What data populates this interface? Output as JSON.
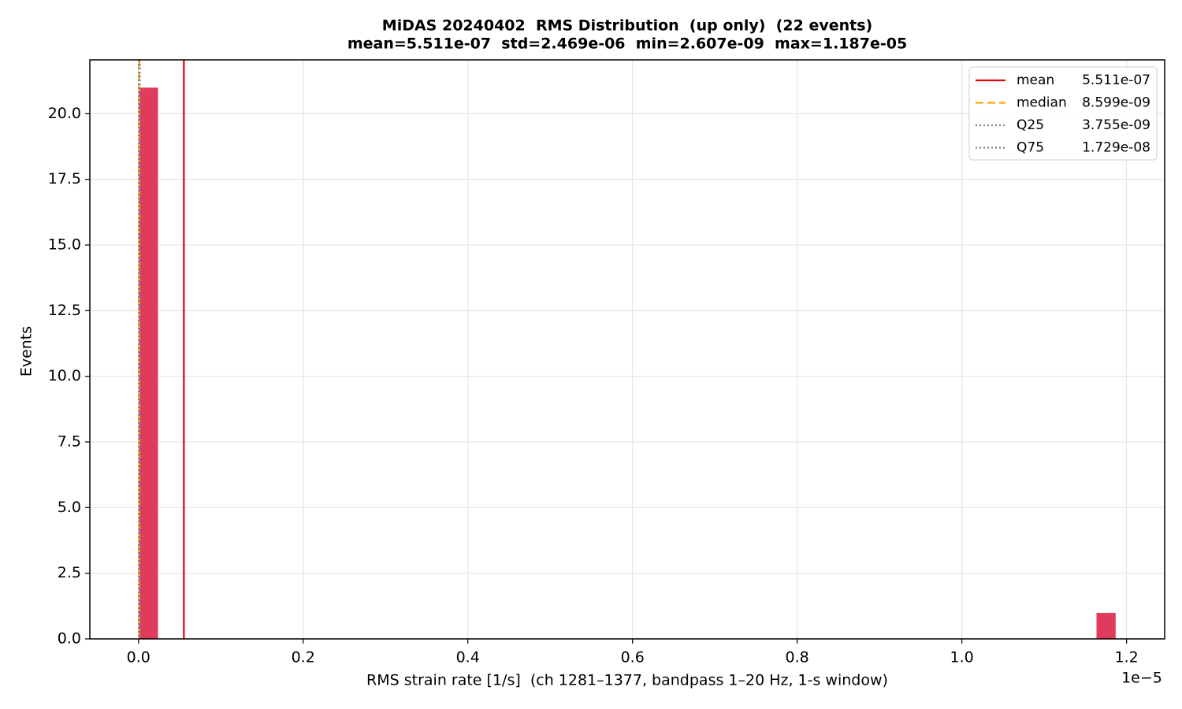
{
  "chart_data": {
    "type": "histogram",
    "title": "MiDAS 20240402  RMS Distribution  (up only)  (22 events)",
    "subtitle": "mean=5.511e-07  std=2.469e-06  min=2.607e-09  max=1.187e-05",
    "x_label": "RMS strain rate [1/s]  (ch 1281–1377, bandpass 1–20 Hz, 1-s window)",
    "x_offset_label": "1e−5",
    "y_label": "Events",
    "color": "#e03a5c",
    "grid": true,
    "legend_position": "upper right",
    "bins": [
      2.607e-09,
      2.39955e-07,
      4.77303e-07,
      7.14651e-07,
      9.51999e-07,
      1.189347e-06,
      1.426695e-06,
      1.664043e-06,
      1.901391e-06,
      2.138739e-06,
      2.376087e-06,
      2.613435e-06,
      2.850783e-06,
      3.088131e-06,
      3.325479e-06,
      3.562827e-06,
      3.800175e-06,
      4.037523e-06,
      4.274871e-06,
      4.512219e-06,
      4.749567e-06,
      4.986915e-06,
      5.224263e-06,
      5.461611e-06,
      5.698959e-06,
      5.936307e-06,
      6.173655e-06,
      6.411003e-06,
      6.648351e-06,
      6.885699e-06,
      7.123047e-06,
      7.360395e-06,
      7.597743e-06,
      7.835091e-06,
      8.072439e-06,
      8.309787e-06,
      8.547135e-06,
      8.784483e-06,
      9.021831e-06,
      9.259179e-06,
      9.496527e-06,
      9.733875e-06,
      9.971223e-06,
      1.0208571e-05,
      1.0445919e-05,
      1.0683267e-05,
      1.0920615e-05,
      1.1157963e-05,
      1.1395311e-05,
      1.1632659e-05,
      1.187e-05
    ],
    "values": [
      21,
      0,
      0,
      0,
      0,
      0,
      0,
      0,
      0,
      0,
      0,
      0,
      0,
      0,
      0,
      0,
      0,
      0,
      0,
      0,
      0,
      0,
      0,
      0,
      0,
      0,
      0,
      0,
      0,
      0,
      0,
      0,
      0,
      0,
      0,
      0,
      0,
      0,
      0,
      0,
      0,
      0,
      0,
      0,
      0,
      0,
      0,
      0,
      0,
      1
    ],
    "vlines": [
      {
        "name": "mean",
        "value": 5.511e-07,
        "value_label": "5.511e-07",
        "color": "#e8000b",
        "style": "solid"
      },
      {
        "name": "median",
        "value": 8.599e-09,
        "value_label": "8.599e-09",
        "color": "#ffa500",
        "style": "dashed"
      },
      {
        "name": "Q25",
        "value": 3.755e-09,
        "value_label": "3.755e-09",
        "color": "#808080",
        "style": "dotted"
      },
      {
        "name": "Q75",
        "value": 1.729e-08,
        "value_label": "1.729e-08",
        "color": "#808080",
        "style": "dotted"
      }
    ],
    "xlim": [
      -5.908e-07,
      1.2463e-05
    ],
    "xticks": [
      {
        "value": 0,
        "label": "0.0"
      },
      {
        "value": 2e-06,
        "label": "0.2"
      },
      {
        "value": 4e-06,
        "label": "0.4"
      },
      {
        "value": 6e-06,
        "label": "0.6"
      },
      {
        "value": 8e-06,
        "label": "0.8"
      },
      {
        "value": 1e-05,
        "label": "1.0"
      },
      {
        "value": 1.2e-05,
        "label": "1.2"
      }
    ],
    "ylim": [
      0,
      22.05
    ],
    "yticks": [
      {
        "value": 0,
        "label": "0.0"
      },
      2.5,
      {
        "value": 5,
        "label": "5.0"
      },
      7.5,
      {
        "value": 10,
        "label": "10.0"
      },
      12.5,
      {
        "value": 15,
        "label": "15.0"
      },
      17.5,
      {
        "value": 20,
        "label": "20.0"
      }
    ]
  }
}
